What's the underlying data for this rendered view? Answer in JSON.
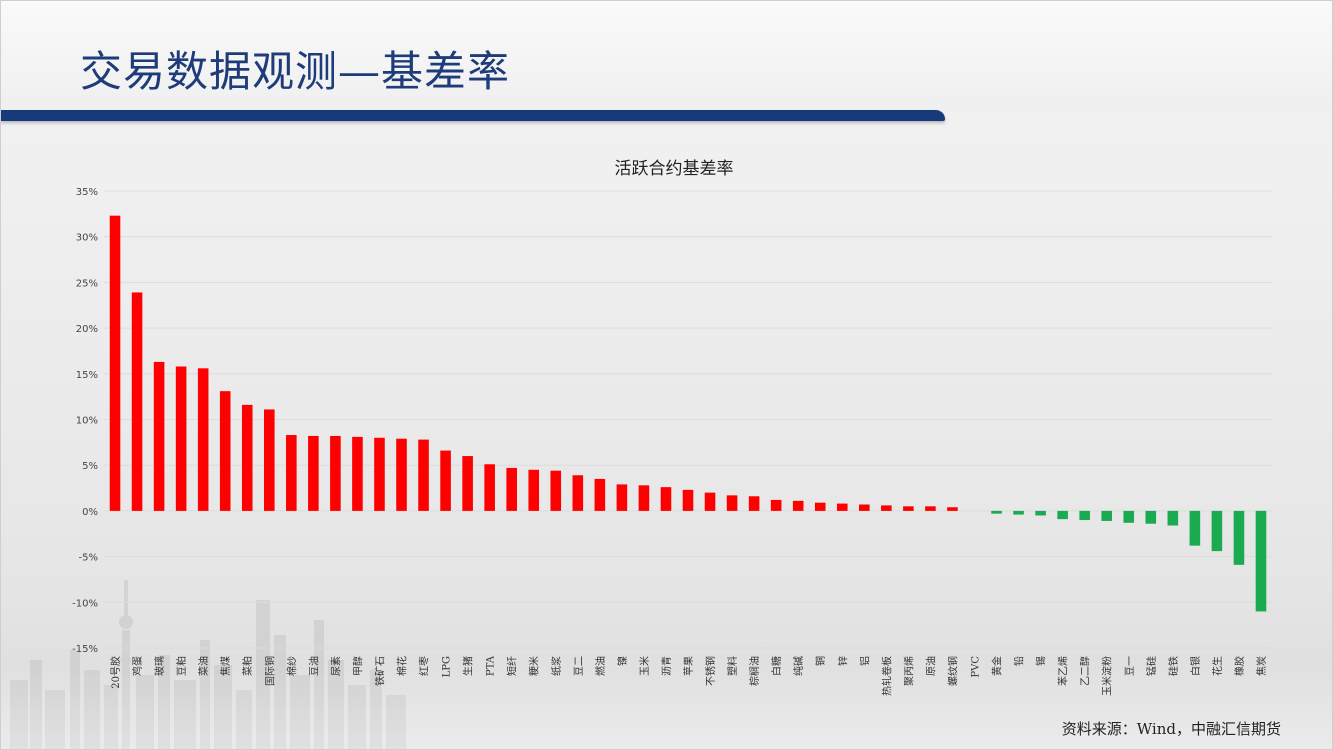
{
  "page_title": "交易数据观测—基差率",
  "source_note": "资料来源：Wind，中融汇信期货",
  "colors": {
    "title": "#1f3c7a",
    "header_bar": "#173a7a",
    "positive_bar": "#ff0000",
    "negative_bar": "#1aaa4f",
    "gridline": "#dcdcdc",
    "axis_text": "#444444"
  },
  "chart_data": {
    "type": "bar",
    "title": "活跃合约基差率",
    "xlabel": "",
    "ylabel": "",
    "ylim": [
      -15,
      35
    ],
    "yticks": [
      35,
      30,
      25,
      20,
      15,
      10,
      5,
      0,
      -5,
      -10,
      -15
    ],
    "ytick_labels": [
      "35%",
      "30%",
      "25%",
      "20%",
      "15%",
      "10%",
      "5%",
      "0%",
      "-5%",
      "-10%",
      "-15%"
    ],
    "grid": true,
    "legend": "none",
    "categories": [
      "20号胶",
      "鸡蛋",
      "玻璃",
      "豆粕",
      "菜油",
      "焦煤",
      "菜粕",
      "国际铜",
      "棉纱",
      "豆油",
      "尿素",
      "甲醇",
      "铁矿石",
      "棉花",
      "红枣",
      "LPG",
      "生猪",
      "PTA",
      "短纤",
      "粳米",
      "纸浆",
      "豆二",
      "燃油",
      "镍",
      "玉米",
      "沥青",
      "苹果",
      "不锈钢",
      "塑料",
      "棕榈油",
      "白糖",
      "纯碱",
      "铜",
      "锌",
      "铝",
      "热轧卷板",
      "聚丙烯",
      "原油",
      "螺纹钢",
      "PVC",
      "黄金",
      "铅",
      "锡",
      "苯乙烯",
      "乙二醇",
      "玉米淀粉",
      "豆一",
      "锰硅",
      "硅铁",
      "白银",
      "花生",
      "橡胶",
      "焦炭"
    ],
    "values": [
      32.3,
      23.9,
      16.3,
      15.8,
      15.6,
      13.1,
      11.6,
      11.1,
      8.3,
      8.2,
      8.2,
      8.1,
      8.0,
      7.9,
      7.8,
      6.6,
      6.0,
      5.1,
      4.7,
      4.5,
      4.4,
      3.9,
      3.5,
      2.9,
      2.8,
      2.6,
      2.3,
      2.0,
      1.7,
      1.6,
      1.2,
      1.1,
      0.9,
      0.8,
      0.7,
      0.6,
      0.5,
      0.5,
      0.4,
      0.0,
      -0.3,
      -0.4,
      -0.5,
      -0.9,
      -1.0,
      -1.1,
      -1.3,
      -1.4,
      -1.6,
      -3.8,
      -4.4,
      -5.9,
      -11.0
    ]
  }
}
